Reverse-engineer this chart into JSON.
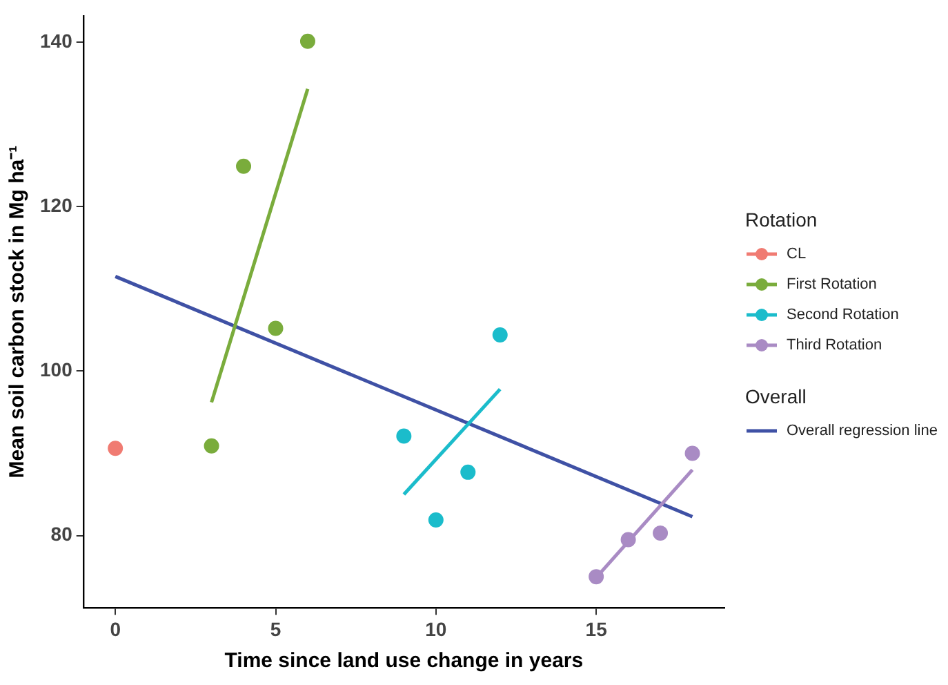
{
  "chart_data": {
    "type": "scatter",
    "xlabel": "Time since land use change in years",
    "ylabel": "Mean soil carbon stock in Mg ha⁻¹",
    "legend_title": "Rotation",
    "annotations": [
      "Overall"
    ],
    "xlim": [
      -1,
      19
    ],
    "xticks": [
      0,
      5,
      10,
      15
    ],
    "ylim": [
      71.2,
      143.2
    ],
    "yticks": [
      80,
      100,
      120,
      140
    ],
    "grid": false,
    "legend": "right",
    "series": [
      {
        "name": "CL",
        "type": "scatter",
        "marker": "circle",
        "color": "#f07b72",
        "x": [
          0
        ],
        "values": [
          90.6
        ]
      },
      {
        "name": "First Rotation",
        "type": "scatter",
        "marker": "circle",
        "color": "#7aac3c",
        "x": [
          3,
          4,
          5,
          6
        ],
        "values": [
          90.9,
          124.9,
          105.2,
          140.1
        ]
      },
      {
        "name": "Second Rotation",
        "type": "scatter",
        "marker": "circle",
        "color": "#1bbccb",
        "x": [
          9,
          10,
          11,
          12
        ],
        "values": [
          92.1,
          81.9,
          87.7,
          104.4
        ]
      },
      {
        "name": "Third Rotation",
        "type": "scatter",
        "marker": "circle",
        "color": "#a98bc4",
        "x": [
          15,
          16,
          17,
          18
        ],
        "values": [
          75.0,
          79.5,
          80.3,
          90.0
        ]
      },
      {
        "type": "line",
        "color": "#7aac3c",
        "x": [
          3,
          6
        ],
        "values": [
          96.2,
          134.3
        ]
      },
      {
        "type": "line",
        "color": "#1bbccb",
        "x": [
          9,
          12
        ],
        "values": [
          85.0,
          97.8
        ]
      },
      {
        "type": "line",
        "color": "#a98bc4",
        "x": [
          15,
          18
        ],
        "values": [
          74.9,
          88.0
        ]
      },
      {
        "name": "Overall regression line",
        "type": "line",
        "color": "#3f51a5",
        "x": [
          0,
          18
        ],
        "values": [
          111.5,
          82.3
        ]
      }
    ]
  }
}
